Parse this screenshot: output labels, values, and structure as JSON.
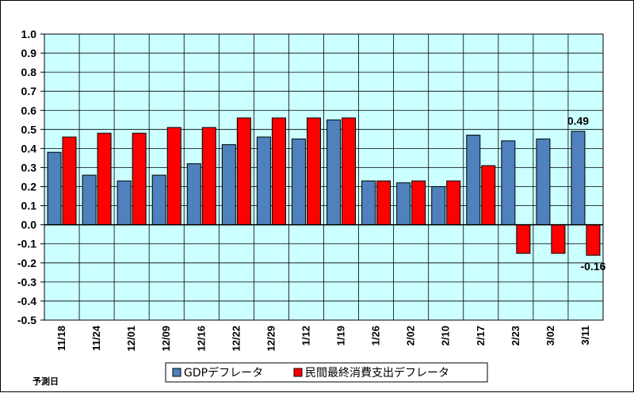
{
  "chart_data": {
    "type": "bar",
    "categories": [
      "11/18",
      "11/24",
      "12/01",
      "12/09",
      "12/16",
      "12/22",
      "12/29",
      "1/12",
      "1/19",
      "1/26",
      "2/02",
      "2/10",
      "2/17",
      "2/23",
      "3/02",
      "3/11"
    ],
    "series": [
      {
        "name": "GDPデフレータ",
        "color": "#4f81bd",
        "values": [
          0.38,
          0.26,
          0.23,
          0.26,
          0.32,
          0.42,
          0.46,
          0.45,
          0.55,
          0.23,
          0.22,
          0.2,
          0.47,
          0.44,
          0.45,
          0.49
        ]
      },
      {
        "name": "民間最終消費支出デフレータ",
        "color": "#ff0000",
        "values": [
          0.46,
          0.48,
          0.48,
          0.51,
          0.51,
          0.56,
          0.56,
          0.56,
          0.56,
          0.23,
          0.23,
          0.23,
          0.31,
          -0.15,
          -0.15,
          -0.16
        ]
      }
    ],
    "ylim": [
      -0.5,
      1.0
    ],
    "yticks": [
      "1.0",
      "0.9",
      "0.8",
      "0.7",
      "0.6",
      "0.5",
      "0.4",
      "0.3",
      "0.2",
      "0.1",
      "0.0",
      "-0.1",
      "-0.2",
      "-0.3",
      "-0.4",
      "-0.5"
    ],
    "plot_background": "#ccffff",
    "grid": true,
    "legend_position": "bottom-center",
    "data_labels": [
      {
        "category": "3/11",
        "series": 0,
        "text": "0.49"
      },
      {
        "category": "3/11",
        "series": 1,
        "text": "-0.16"
      }
    ],
    "footnote": "予測日"
  }
}
